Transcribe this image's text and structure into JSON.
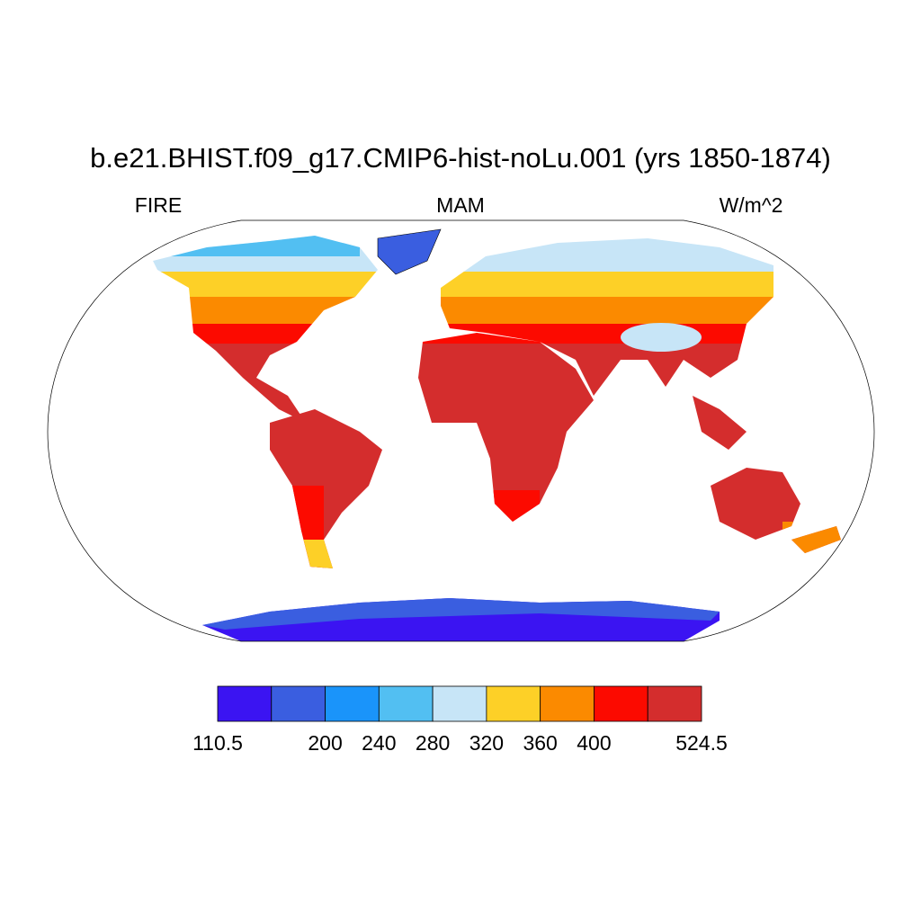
{
  "title": "b.e21.BHIST.f09_g17.CMIP6-hist-noLu.001 (yrs 1850-1874)",
  "left_string": "FIRE",
  "center_string": "MAM",
  "right_string": "W/m^2",
  "colorbar": {
    "colors": [
      "#3b14f2",
      "#3a5ee0",
      "#1a94fa",
      "#52bff2",
      "#c7e5f7",
      "#fdd027",
      "#fb8a00",
      "#fc0a00",
      "#d42d2d"
    ],
    "levels": [
      110.5,
      null,
      200,
      240,
      280,
      320,
      360,
      400,
      null,
      524.5
    ]
  }
}
